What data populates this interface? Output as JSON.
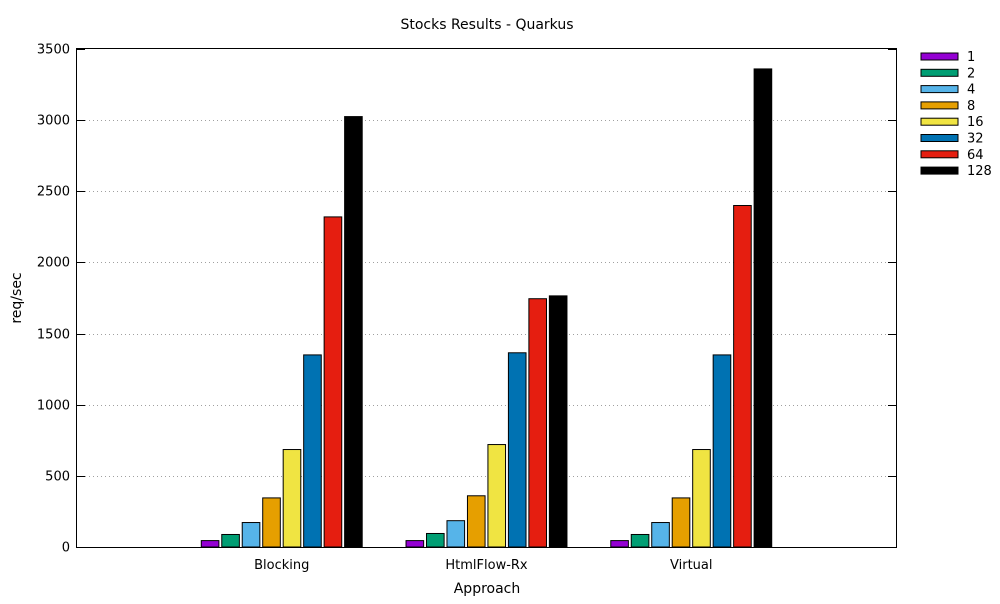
{
  "chart_data": {
    "type": "bar",
    "title": "Stocks Results - Quarkus",
    "xlabel": "Approach",
    "ylabel": "req/sec",
    "ylim": [
      0,
      3500
    ],
    "yticks": [
      0,
      500,
      1000,
      1500,
      2000,
      2500,
      3000,
      3500
    ],
    "grid": "horizontal dotted",
    "legend_position": "right",
    "categories": [
      "Blocking",
      "HtmlFlow-Rx",
      "Virtual"
    ],
    "series": [
      {
        "name": "1",
        "color": "#9400d3",
        "values": [
          45,
          45,
          45
        ]
      },
      {
        "name": "2",
        "color": "#009e73",
        "values": [
          88,
          95,
          88
        ]
      },
      {
        "name": "4",
        "color": "#56b4e9",
        "values": [
          172,
          185,
          172
        ]
      },
      {
        "name": "8",
        "color": "#e69f00",
        "values": [
          345,
          360,
          345
        ]
      },
      {
        "name": "16",
        "color": "#f0e442",
        "values": [
          685,
          720,
          685
        ]
      },
      {
        "name": "32",
        "color": "#0072b2",
        "values": [
          1350,
          1365,
          1350
        ]
      },
      {
        "name": "64",
        "color": "#e51e10",
        "values": [
          2320,
          1745,
          2400
        ]
      },
      {
        "name": "128",
        "color": "#000000",
        "values": [
          3025,
          1765,
          3360
        ]
      }
    ]
  }
}
